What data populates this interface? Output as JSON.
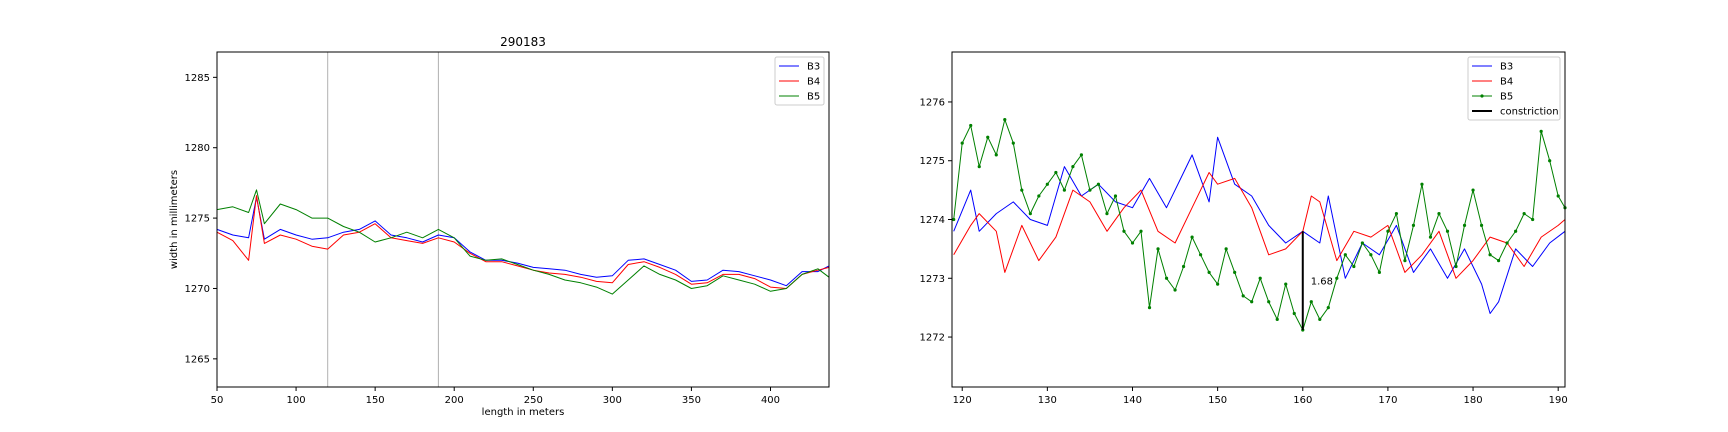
{
  "colors": {
    "B3": "#0000ff",
    "B4": "#ff0000",
    "B5": "#008000",
    "constriction": "#000000",
    "vline": "#b0b0b0"
  },
  "chart_data": [
    {
      "type": "line",
      "title": "290183",
      "xlabel": "length in meters",
      "ylabel": "width in millimeters",
      "xlim": [
        50,
        437
      ],
      "ylim": [
        1263,
        1286.8
      ],
      "xticks": [
        50,
        100,
        150,
        200,
        250,
        300,
        350,
        400
      ],
      "yticks": [
        1265,
        1270,
        1275,
        1280,
        1285
      ],
      "vlines": [
        120,
        190
      ],
      "legend": {
        "placement": "top-right",
        "entries": [
          "B3",
          "B4",
          "B5"
        ]
      },
      "series": [
        {
          "name": "B3",
          "x": [
            50,
            60,
            70,
            75,
            80,
            90,
            100,
            110,
            120,
            130,
            140,
            150,
            160,
            170,
            180,
            190,
            200,
            210,
            220,
            230,
            240,
            250,
            260,
            270,
            280,
            290,
            300,
            310,
            320,
            330,
            340,
            350,
            360,
            370,
            380,
            390,
            400,
            410,
            420,
            430,
            437
          ],
          "y": [
            1274.2,
            1273.8,
            1273.6,
            1276.5,
            1273.5,
            1274.2,
            1273.8,
            1273.5,
            1273.6,
            1274.0,
            1274.2,
            1274.8,
            1273.8,
            1273.6,
            1273.3,
            1273.8,
            1273.6,
            1272.6,
            1272.0,
            1272.0,
            1271.8,
            1271.5,
            1271.4,
            1271.3,
            1271.0,
            1270.8,
            1270.9,
            1272.0,
            1272.1,
            1271.7,
            1271.3,
            1270.5,
            1270.6,
            1271.3,
            1271.2,
            1270.9,
            1270.6,
            1270.2,
            1271.2,
            1271.2,
            1271.6
          ]
        },
        {
          "name": "B4",
          "x": [
            50,
            60,
            70,
            75,
            80,
            90,
            100,
            110,
            120,
            130,
            140,
            150,
            160,
            170,
            180,
            190,
            200,
            210,
            220,
            230,
            240,
            250,
            260,
            270,
            280,
            290,
            300,
            310,
            320,
            330,
            340,
            350,
            360,
            370,
            380,
            390,
            400,
            410,
            420,
            430,
            437
          ],
          "y": [
            1274.0,
            1273.4,
            1272.0,
            1276.6,
            1273.2,
            1273.8,
            1273.5,
            1273.0,
            1272.8,
            1273.8,
            1274.0,
            1274.6,
            1273.6,
            1273.4,
            1273.2,
            1273.6,
            1273.3,
            1272.5,
            1271.9,
            1271.9,
            1271.6,
            1271.3,
            1271.1,
            1271.0,
            1270.8,
            1270.5,
            1270.4,
            1271.7,
            1271.9,
            1271.5,
            1271.0,
            1270.3,
            1270.4,
            1271.0,
            1271.0,
            1270.7,
            1270.1,
            1270.0,
            1271.0,
            1271.3,
            1271.5
          ]
        },
        {
          "name": "B5",
          "x": [
            50,
            60,
            70,
            75,
            80,
            90,
            100,
            110,
            120,
            130,
            140,
            150,
            160,
            170,
            180,
            190,
            200,
            210,
            220,
            230,
            240,
            250,
            260,
            270,
            280,
            290,
            300,
            310,
            320,
            330,
            340,
            350,
            360,
            370,
            380,
            390,
            400,
            410,
            420,
            430,
            437
          ],
          "y": [
            1275.6,
            1275.8,
            1275.4,
            1277.0,
            1274.6,
            1276.0,
            1275.6,
            1275.0,
            1275.0,
            1274.4,
            1274.0,
            1273.3,
            1273.6,
            1274.0,
            1273.6,
            1274.2,
            1273.6,
            1272.3,
            1272.0,
            1272.1,
            1271.7,
            1271.3,
            1271.0,
            1270.6,
            1270.4,
            1270.1,
            1269.6,
            1270.6,
            1271.6,
            1271.0,
            1270.6,
            1270.0,
            1270.2,
            1270.9,
            1270.6,
            1270.3,
            1269.8,
            1270.0,
            1271.0,
            1271.4,
            1270.8
          ]
        }
      ]
    },
    {
      "type": "line",
      "title": "",
      "xlabel": "",
      "ylabel": "",
      "xlim": [
        118.8,
        190.8
      ],
      "ylim": [
        1271.15,
        1276.85
      ],
      "xticks": [
        120,
        130,
        140,
        150,
        160,
        170,
        180,
        190
      ],
      "yticks": [
        1272,
        1273,
        1274,
        1275,
        1276
      ],
      "legend": {
        "placement": "top-right",
        "entries": [
          "B3",
          "B4",
          "B5",
          "constriction"
        ]
      },
      "constriction": {
        "x": 160,
        "y0": 1272.12,
        "y1": 1273.8,
        "label": "1.68"
      },
      "series": [
        {
          "name": "B3",
          "markers": false,
          "x": [
            119,
            121,
            122,
            124,
            126,
            128,
            130,
            132,
            134,
            136,
            138,
            140,
            142,
            144,
            146,
            147,
            149,
            150,
            152,
            154,
            156,
            158,
            160,
            162,
            163,
            165,
            167,
            169,
            171,
            173,
            175,
            177,
            179,
            181,
            182,
            183,
            185,
            187,
            189,
            190.8
          ],
          "y": [
            1273.8,
            1274.5,
            1273.8,
            1274.1,
            1274.3,
            1274.0,
            1273.9,
            1274.9,
            1274.4,
            1274.6,
            1274.3,
            1274.2,
            1274.7,
            1274.2,
            1274.8,
            1275.1,
            1274.3,
            1275.4,
            1274.6,
            1274.4,
            1273.9,
            1273.6,
            1273.8,
            1273.6,
            1274.4,
            1273.0,
            1273.6,
            1273.4,
            1273.9,
            1273.1,
            1273.5,
            1273.0,
            1273.5,
            1272.9,
            1272.4,
            1272.6,
            1273.5,
            1273.2,
            1273.6,
            1273.8
          ]
        },
        {
          "name": "B4",
          "markers": false,
          "x": [
            119,
            121,
            122,
            124,
            125,
            127,
            129,
            131,
            133,
            135,
            137,
            139,
            141,
            143,
            145,
            147,
            149,
            150,
            152,
            154,
            156,
            158,
            160,
            161,
            162,
            164,
            166,
            168,
            170,
            172,
            174,
            176,
            178,
            180,
            182,
            184,
            186,
            188,
            190,
            190.8
          ],
          "y": [
            1273.4,
            1273.9,
            1274.1,
            1273.8,
            1273.1,
            1273.9,
            1273.3,
            1273.7,
            1274.5,
            1274.3,
            1273.8,
            1274.2,
            1274.5,
            1273.8,
            1273.6,
            1274.2,
            1274.8,
            1274.6,
            1274.7,
            1274.2,
            1273.4,
            1273.5,
            1273.8,
            1274.4,
            1274.3,
            1273.3,
            1273.8,
            1273.7,
            1273.9,
            1273.1,
            1273.4,
            1273.8,
            1273.0,
            1273.3,
            1273.7,
            1273.6,
            1273.2,
            1273.7,
            1273.9,
            1274.0
          ]
        },
        {
          "name": "B5",
          "markers": true,
          "x": [
            119,
            120,
            121,
            122,
            123,
            124,
            125,
            126,
            127,
            128,
            129,
            130,
            131,
            132,
            133,
            134,
            135,
            136,
            137,
            138,
            139,
            140,
            141,
            142,
            143,
            144,
            145,
            146,
            147,
            148,
            149,
            150,
            151,
            152,
            153,
            154,
            155,
            156,
            157,
            158,
            159,
            160,
            161,
            162,
            163,
            164,
            165,
            166,
            167,
            168,
            169,
            170,
            171,
            172,
            173,
            174,
            175,
            176,
            177,
            178,
            179,
            180,
            181,
            182,
            183,
            184,
            185,
            186,
            187,
            188,
            189,
            190,
            190.8
          ],
          "y": [
            1274.0,
            1275.3,
            1275.6,
            1274.9,
            1275.4,
            1275.1,
            1275.7,
            1275.3,
            1274.5,
            1274.1,
            1274.4,
            1274.6,
            1274.8,
            1274.5,
            1274.9,
            1275.1,
            1274.5,
            1274.6,
            1274.1,
            1274.4,
            1273.8,
            1273.6,
            1273.8,
            1272.5,
            1273.5,
            1273.0,
            1272.8,
            1273.2,
            1273.7,
            1273.4,
            1273.1,
            1272.9,
            1273.5,
            1273.1,
            1272.7,
            1272.6,
            1273.0,
            1272.6,
            1272.3,
            1272.9,
            1272.4,
            1272.12,
            1272.6,
            1272.3,
            1272.5,
            1273.0,
            1273.4,
            1273.2,
            1273.6,
            1273.4,
            1273.1,
            1273.8,
            1274.1,
            1273.3,
            1273.9,
            1274.6,
            1273.7,
            1274.1,
            1273.8,
            1273.2,
            1273.9,
            1274.5,
            1273.9,
            1273.4,
            1273.3,
            1273.6,
            1273.8,
            1274.1,
            1274.0,
            1275.5,
            1275.0,
            1274.4,
            1274.2
          ]
        }
      ]
    }
  ]
}
